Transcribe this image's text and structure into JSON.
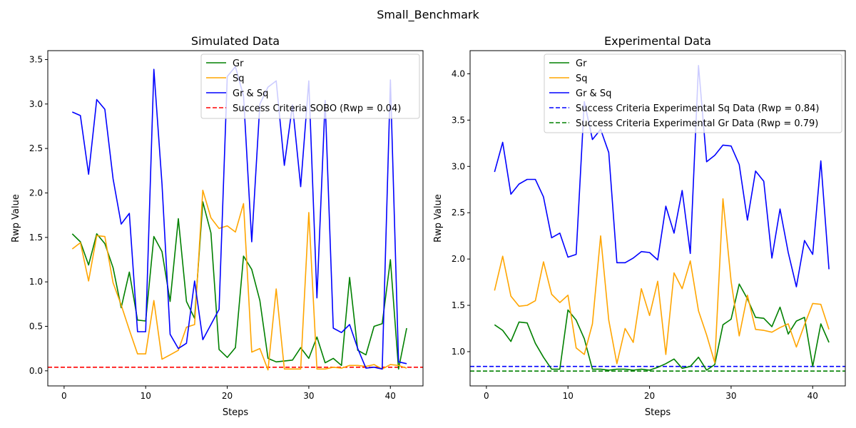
{
  "figure_title": "Small_Benchmark",
  "colors": {
    "gr": "#008000",
    "sq": "#ffa500",
    "grsq": "#0000ff",
    "red": "#ff0000",
    "axis": "#000000"
  },
  "chart_data": [
    {
      "type": "line",
      "title": "Simulated Data",
      "xlabel": "Steps",
      "ylabel": "Rwp Value",
      "xlim": [
        -2,
        44
      ],
      "ylim": [
        -0.17,
        3.6
      ],
      "xticks": [
        0,
        10,
        20,
        30,
        40
      ],
      "yticks": [
        0.0,
        0.5,
        1.0,
        1.5,
        2.0,
        2.5,
        3.0,
        3.5
      ],
      "ytick_labels": [
        "0.0",
        "0.5",
        "1.0",
        "1.5",
        "2.0",
        "2.5",
        "3.0",
        "3.5"
      ],
      "legend_position": "upper-right",
      "x": [
        1,
        2,
        3,
        4,
        5,
        6,
        7,
        8,
        9,
        10,
        11,
        12,
        13,
        14,
        15,
        16,
        17,
        18,
        19,
        20,
        21,
        22,
        23,
        24,
        25,
        26,
        27,
        28,
        29,
        30,
        31,
        32,
        33,
        34,
        35,
        36,
        37,
        38,
        39,
        40,
        41,
        42
      ],
      "series": [
        {
          "name": "Gr",
          "color": "#008000",
          "values": [
            1.54,
            1.45,
            1.19,
            1.54,
            1.43,
            1.16,
            0.71,
            1.11,
            0.57,
            0.56,
            1.51,
            1.34,
            0.78,
            1.71,
            0.78,
            0.59,
            1.9,
            1.55,
            0.24,
            0.15,
            0.26,
            1.29,
            1.14,
            0.79,
            0.14,
            0.1,
            0.11,
            0.12,
            0.26,
            0.14,
            0.38,
            0.09,
            0.14,
            0.06,
            1.05,
            0.23,
            0.18,
            0.5,
            0.53,
            1.25,
            0.02,
            0.48
          ]
        },
        {
          "name": "Sq",
          "color": "#ffa500",
          "values": [
            1.37,
            1.44,
            1.01,
            1.52,
            1.51,
            0.99,
            0.74,
            0.46,
            0.19,
            0.19,
            0.79,
            0.13,
            0.18,
            0.23,
            0.49,
            0.52,
            2.03,
            1.72,
            1.6,
            1.63,
            1.56,
            1.88,
            0.21,
            0.25,
            0.01,
            0.92,
            0.02,
            0.02,
            0.02,
            1.78,
            0.02,
            0.02,
            0.04,
            0.03,
            0.06,
            0.06,
            0.05,
            0.07,
            0.02,
            0.07,
            0.06,
            0.03
          ]
        },
        {
          "name": "Gr & Sq",
          "color": "#0000ff",
          "values": [
            2.91,
            2.87,
            2.21,
            3.05,
            2.94,
            2.16,
            1.65,
            1.77,
            0.44,
            0.44,
            3.39,
            2.1,
            0.41,
            0.25,
            0.31,
            1.01,
            0.35,
            0.52,
            0.69,
            3.31,
            3.42,
            3.09,
            1.45,
            3.0,
            3.19,
            3.26,
            2.31,
            2.99,
            2.07,
            3.26,
            0.82,
            3.04,
            0.48,
            0.43,
            0.52,
            0.25,
            0.03,
            0.04,
            0.02,
            3.27,
            0.1,
            0.08
          ]
        }
      ],
      "hlines": [
        {
          "name": "Success Criteria SOBO (Rwp = 0.04)",
          "value": 0.04,
          "color": "#ff0000"
        }
      ]
    },
    {
      "type": "line",
      "title": "Experimental Data",
      "xlabel": "Steps",
      "ylabel": "Rwp Value",
      "xlim": [
        -2,
        44
      ],
      "ylim": [
        0.63,
        4.25
      ],
      "xticks": [
        0,
        10,
        20,
        30,
        40
      ],
      "yticks": [
        1.0,
        1.5,
        2.0,
        2.5,
        3.0,
        3.5,
        4.0
      ],
      "ytick_labels": [
        "1.0",
        "1.5",
        "2.0",
        "2.5",
        "3.0",
        "3.5",
        "4.0"
      ],
      "legend_position": "upper-right",
      "x": [
        1,
        2,
        3,
        4,
        5,
        6,
        7,
        8,
        9,
        10,
        11,
        12,
        13,
        14,
        15,
        16,
        17,
        18,
        19,
        20,
        21,
        22,
        23,
        24,
        25,
        26,
        27,
        28,
        29,
        30,
        31,
        32,
        33,
        34,
        35,
        36,
        37,
        38,
        39,
        40,
        41,
        42
      ],
      "series": [
        {
          "name": "Gr",
          "color": "#008000",
          "values": [
            1.29,
            1.23,
            1.11,
            1.32,
            1.31,
            1.09,
            0.94,
            0.81,
            0.81,
            1.45,
            1.34,
            1.14,
            0.81,
            0.81,
            0.8,
            0.81,
            0.81,
            0.8,
            0.81,
            0.8,
            0.83,
            0.87,
            0.92,
            0.82,
            0.84,
            0.94,
            0.8,
            0.86,
            1.29,
            1.35,
            1.73,
            1.57,
            1.37,
            1.36,
            1.27,
            1.48,
            1.19,
            1.33,
            1.37,
            0.84,
            1.3,
            1.1
          ]
        },
        {
          "name": "Sq",
          "color": "#ffa500",
          "values": [
            1.66,
            2.03,
            1.6,
            1.49,
            1.5,
            1.55,
            1.97,
            1.62,
            1.53,
            1.61,
            1.04,
            0.97,
            1.3,
            2.25,
            1.34,
            0.87,
            1.25,
            1.1,
            1.68,
            1.39,
            1.76,
            0.97,
            1.85,
            1.68,
            1.98,
            1.44,
            1.18,
            0.88,
            2.65,
            1.76,
            1.17,
            1.61,
            1.24,
            1.23,
            1.21,
            1.26,
            1.3,
            1.05,
            1.29,
            1.52,
            1.51,
            1.24
          ]
        },
        {
          "name": "Gr & Sq",
          "color": "#0000ff",
          "values": [
            2.94,
            3.26,
            2.7,
            2.81,
            2.86,
            2.86,
            2.67,
            2.23,
            2.28,
            2.02,
            2.05,
            3.7,
            3.29,
            3.4,
            3.15,
            1.96,
            1.96,
            2.01,
            2.08,
            2.07,
            1.99,
            2.57,
            2.28,
            2.74,
            2.06,
            4.09,
            3.05,
            3.12,
            3.23,
            3.22,
            3.02,
            2.42,
            2.95,
            2.84,
            2.01,
            2.54,
            2.07,
            1.7,
            2.2,
            2.05,
            3.06,
            1.89
          ]
        }
      ],
      "hlines": [
        {
          "name": "Success Criteria Experimental Sq Data (Rwp = 0.84)",
          "value": 0.84,
          "color": "#0000ff"
        },
        {
          "name": "Success Criteria Experimental Gr Data (Rwp = 0.79)",
          "value": 0.79,
          "color": "#008000"
        }
      ]
    }
  ]
}
